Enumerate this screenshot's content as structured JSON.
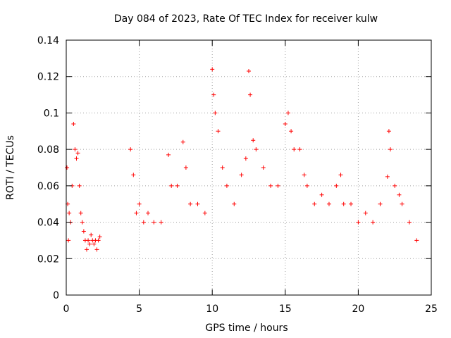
{
  "chart_data": {
    "type": "scatter",
    "title": "Day 084 of 2023, Rate Of TEC Index for receiver kulw",
    "xlabel": "GPS time / hours",
    "ylabel": "ROTI / TECUs",
    "xlim": [
      0,
      25
    ],
    "ylim": [
      0,
      0.14
    ],
    "x_ticks": [
      0,
      5,
      10,
      15,
      20,
      25
    ],
    "x_tick_labels": [
      "0",
      "5",
      "10",
      "15",
      "20",
      "25"
    ],
    "y_ticks": [
      0,
      0.02,
      0.04,
      0.06,
      0.08,
      0.1,
      0.12,
      0.14
    ],
    "y_tick_labels": [
      "0",
      "0.02",
      "0.04",
      "0.06",
      "0.08",
      "0.1",
      "0.12",
      "0.14"
    ],
    "grid": true,
    "legend": "none",
    "marker": "+",
    "color": "#ff0000",
    "series": [
      {
        "x": [
          0.05,
          0.1,
          0.15,
          0.2,
          0.3,
          0.4,
          0.5,
          0.6,
          0.7,
          0.8,
          0.9,
          1.0,
          1.1,
          1.2,
          1.3,
          1.4,
          1.5,
          1.6,
          1.7,
          1.8,
          1.9,
          2.0,
          2.1,
          2.2,
          2.3,
          4.4,
          4.6,
          4.8,
          5.0,
          5.3,
          5.6,
          6.0,
          6.5,
          7.0,
          7.2,
          7.6,
          8.0,
          8.2,
          8.5,
          9.0,
          9.5,
          10.0,
          10.1,
          10.2,
          10.4,
          10.7,
          11.0,
          11.5,
          12.0,
          12.3,
          12.5,
          12.6,
          12.8,
          13.0,
          13.5,
          14.0,
          14.5,
          15.0,
          15.2,
          15.4,
          15.6,
          16.0,
          16.3,
          16.5,
          17.0,
          17.5,
          18.0,
          18.5,
          18.8,
          19.0,
          19.5,
          20.0,
          20.5,
          21.0,
          21.5,
          22.0,
          22.1,
          22.2,
          22.5,
          22.8,
          23.0,
          23.5,
          24.0
        ],
        "y": [
          0.07,
          0.05,
          0.03,
          0.045,
          0.04,
          0.06,
          0.094,
          0.08,
          0.075,
          0.078,
          0.06,
          0.045,
          0.04,
          0.035,
          0.03,
          0.025,
          0.03,
          0.028,
          0.033,
          0.03,
          0.028,
          0.03,
          0.025,
          0.03,
          0.032,
          0.08,
          0.066,
          0.045,
          0.05,
          0.04,
          0.045,
          0.04,
          0.04,
          0.077,
          0.06,
          0.06,
          0.084,
          0.07,
          0.05,
          0.05,
          0.045,
          0.124,
          0.11,
          0.1,
          0.09,
          0.07,
          0.06,
          0.05,
          0.066,
          0.075,
          0.123,
          0.11,
          0.085,
          0.08,
          0.07,
          0.06,
          0.06,
          0.094,
          0.1,
          0.09,
          0.08,
          0.08,
          0.066,
          0.06,
          0.05,
          0.055,
          0.05,
          0.06,
          0.066,
          0.05,
          0.05,
          0.04,
          0.045,
          0.04,
          0.05,
          0.065,
          0.09,
          0.08,
          0.06,
          0.055,
          0.05,
          0.04,
          0.03
        ]
      }
    ]
  }
}
